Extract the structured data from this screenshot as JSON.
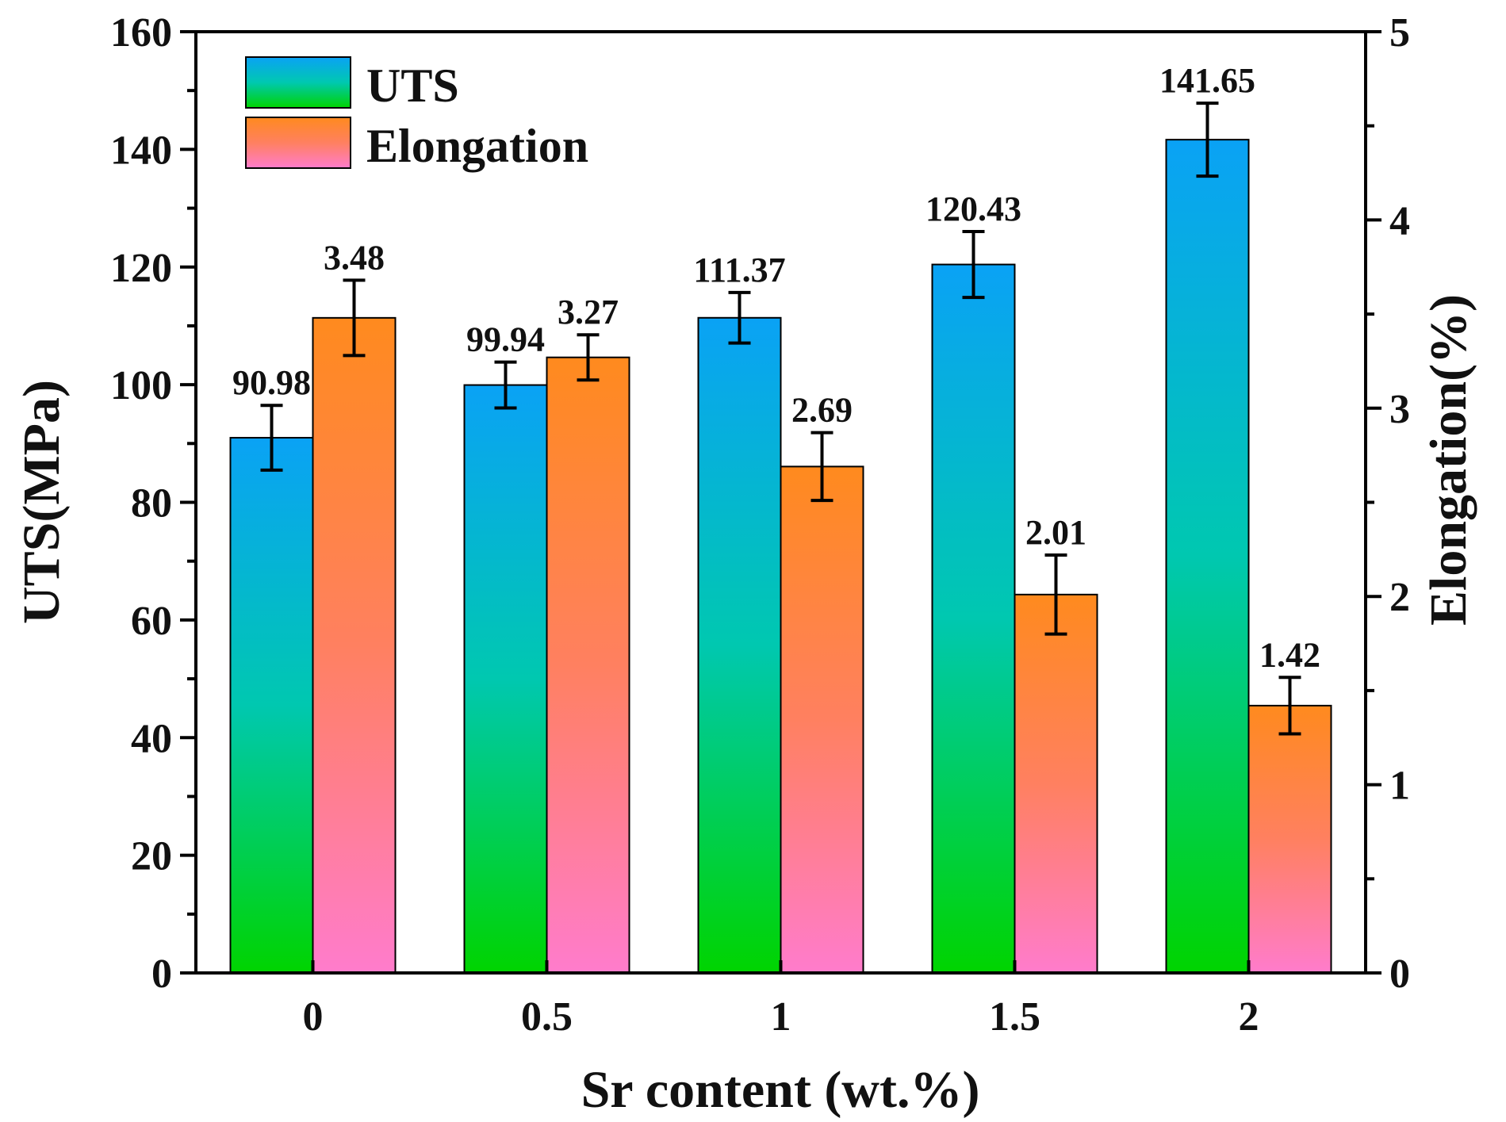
{
  "chart_data": {
    "type": "bar",
    "title": "",
    "xlabel": "Sr content (wt.%)",
    "ylabel": "UTS(MPa)",
    "y2label": "Elongation(%)",
    "categories": [
      "0",
      "0.5",
      "1",
      "1.5",
      "2"
    ],
    "ylim": [
      0,
      160
    ],
    "y2lim": [
      0,
      5
    ],
    "yticks": [
      "0",
      "20",
      "40",
      "60",
      "80",
      "100",
      "120",
      "140",
      "160"
    ],
    "y2ticks": [
      "0",
      "1",
      "2",
      "3",
      "4",
      "5"
    ],
    "legend_position": "top-left",
    "grid": false,
    "series": [
      {
        "name": "UTS",
        "axis": "left",
        "values": [
          90.98,
          99.94,
          111.37,
          120.43,
          141.65
        ],
        "errors": [
          5.5,
          3.9,
          4.3,
          5.6,
          6.2
        ],
        "labels": [
          "90.98",
          "99.94",
          "111.37",
          "120.43",
          "141.65"
        ],
        "gradient": [
          "#0aa2f5",
          "#00c8b0",
          "#00d400"
        ]
      },
      {
        "name": "Elongation",
        "axis": "right",
        "values": [
          3.48,
          3.27,
          2.69,
          2.01,
          1.42
        ],
        "errors": [
          0.2,
          0.12,
          0.18,
          0.21,
          0.15
        ],
        "labels": [
          "3.48",
          "3.27",
          "2.69",
          "2.01",
          "1.42"
        ],
        "gradient": [
          "#ff8a1e",
          "#ff8060",
          "#ff7ccc"
        ]
      }
    ]
  }
}
